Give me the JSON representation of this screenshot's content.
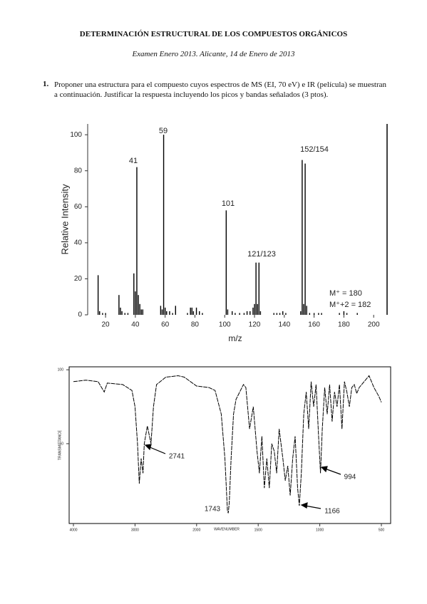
{
  "header": {
    "title": "DETERMINACIÓN ESTRUCTURAL DE LOS COMPUESTOS ORGÁNICOS",
    "subtitle": "Examen Enero 2013. Alicante, 14 de Enero de 2013"
  },
  "question": {
    "number": "1.",
    "text": "Proponer una estructura para el compuesto cuyos espectros de MS (EI, 70 eV) e IR (película) se muestran a continuación. Justificar la respuesta incluyendo los picos y bandas señalados (3 ptos)."
  },
  "chart_data": [
    {
      "type": "bar",
      "xlabel": "m/z",
      "ylabel": "Relative Intensity",
      "color": "#000000",
      "x": [
        15,
        16,
        18,
        20,
        29,
        30,
        31,
        33,
        35,
        39,
        40,
        41,
        42,
        43,
        44,
        45,
        57,
        58,
        59,
        60,
        61,
        63,
        65,
        67,
        75,
        77,
        78,
        79,
        81,
        83,
        85,
        101,
        102,
        105,
        107,
        110,
        113,
        115,
        117,
        119,
        120,
        121,
        122,
        123,
        124,
        133,
        135,
        137,
        139,
        141,
        151,
        152,
        153,
        154,
        155,
        157,
        160,
        163,
        165,
        177,
        180,
        182,
        189
      ],
      "values": [
        22,
        2,
        1,
        1,
        11,
        4,
        2,
        1,
        1,
        23,
        13,
        82,
        11,
        6,
        3,
        3,
        5,
        3,
        100,
        4,
        2,
        2,
        1,
        5,
        1,
        4,
        4,
        2,
        4,
        2,
        1,
        58,
        3,
        2,
        1,
        1,
        1,
        2,
        2,
        4,
        6,
        29,
        6,
        29,
        2,
        1,
        1,
        1,
        2,
        1,
        2,
        86,
        6,
        84,
        5,
        1,
        1,
        1,
        1,
        1,
        2,
        1,
        1
      ],
      "xlim": [
        8,
        209
      ],
      "ylim": [
        0,
        106
      ],
      "xticks": [
        20,
        40,
        60,
        80,
        100,
        120,
        140,
        160,
        180,
        200
      ],
      "yticks": [
        0,
        20,
        40,
        60,
        80,
        100
      ],
      "annotations": [
        "59",
        "41",
        "152/154",
        "101",
        "121/123",
        "M⁺ = 180",
        "M⁺+2 = 182"
      ]
    },
    {
      "type": "line",
      "xlabel": "WAVENUMBER",
      "ylabel": "TRANSMITTANCE",
      "color": "#000000",
      "x": [
        4000,
        3800,
        3600,
        3500,
        3450,
        3200,
        3050,
        3000,
        2960,
        2930,
        2900,
        2870,
        2850,
        2800,
        2741,
        2700,
        2650,
        2500,
        2300,
        2200,
        2100,
        2000,
        1900,
        1850,
        1800,
        1770,
        1750,
        1743,
        1735,
        1720,
        1700,
        1680,
        1650,
        1620,
        1600,
        1570,
        1540,
        1510,
        1490,
        1470,
        1450,
        1430,
        1410,
        1390,
        1370,
        1350,
        1330,
        1300,
        1280,
        1260,
        1240,
        1220,
        1200,
        1180,
        1166,
        1150,
        1130,
        1110,
        1090,
        1070,
        1050,
        1030,
        1010,
        994,
        980,
        960,
        940,
        920,
        900,
        880,
        860,
        840,
        820,
        800,
        780,
        760,
        740,
        720,
        700,
        680,
        640,
        600,
        560,
        520,
        500
      ],
      "values": [
        92,
        93,
        92,
        85,
        91,
        90,
        86,
        75,
        50,
        23,
        40,
        30,
        50,
        62,
        50,
        75,
        90,
        95,
        96,
        95,
        92,
        89,
        88,
        86,
        70,
        40,
        5,
        3,
        10,
        40,
        70,
        80,
        85,
        90,
        88,
        60,
        75,
        45,
        30,
        55,
        20,
        40,
        20,
        50,
        45,
        30,
        60,
        40,
        25,
        35,
        15,
        40,
        55,
        20,
        8,
        30,
        70,
        85,
        60,
        92,
        75,
        90,
        55,
        30,
        60,
        88,
        70,
        90,
        65,
        85,
        75,
        90,
        60,
        92,
        85,
        75,
        88,
        90,
        84,
        88,
        92,
        96,
        88,
        82,
        78
      ],
      "xlim": [
        4000,
        500
      ],
      "ylim": [
        -4,
        102
      ],
      "xticks": [
        4000,
        3000,
        2000,
        1500,
        1000,
        500
      ],
      "yticks": [
        50,
        100
      ],
      "annotations": [
        "2741",
        "1743",
        "1166",
        "994"
      ]
    }
  ]
}
